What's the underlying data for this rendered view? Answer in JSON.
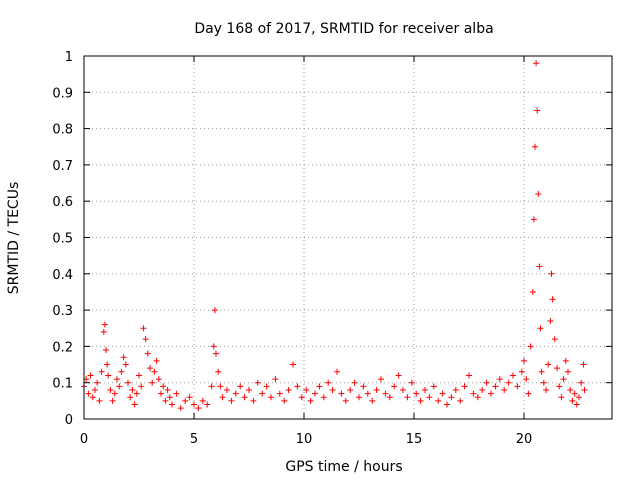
{
  "chart_data": {
    "type": "scatter",
    "title": "Day 168 of 2017, SRMTID for receiver alba",
    "xlabel": "GPS time / hours",
    "ylabel": "SRMTID / TECUs",
    "xlim": [
      0,
      24
    ],
    "ylim": [
      0,
      1
    ],
    "xticks": [
      0,
      5,
      10,
      15,
      20
    ],
    "yticks": [
      0,
      0.1,
      0.2,
      0.3,
      0.4,
      0.5,
      0.6,
      0.7,
      0.8,
      0.9,
      1
    ],
    "ytick_labels": [
      "0",
      "0.1",
      "0.2",
      "0.3",
      "0.4",
      "0.5",
      "0.6",
      "0.7",
      "0.8",
      "0.9",
      "1"
    ],
    "xtick_labels": [
      "0",
      "5",
      "10",
      "15",
      "20"
    ],
    "grid": true,
    "marker": "+",
    "marker_color": "#ff0000",
    "series": [
      {
        "name": "SRMTID",
        "points": [
          [
            0.0,
            0.09
          ],
          [
            0.1,
            0.11
          ],
          [
            0.2,
            0.07
          ],
          [
            0.3,
            0.12
          ],
          [
            0.4,
            0.06
          ],
          [
            0.5,
            0.08
          ],
          [
            0.6,
            0.1
          ],
          [
            0.7,
            0.05
          ],
          [
            0.8,
            0.13
          ],
          [
            0.9,
            0.24
          ],
          [
            0.95,
            0.26
          ],
          [
            1.0,
            0.19
          ],
          [
            1.05,
            0.15
          ],
          [
            1.1,
            0.12
          ],
          [
            1.2,
            0.08
          ],
          [
            1.3,
            0.05
          ],
          [
            1.4,
            0.07
          ],
          [
            1.5,
            0.11
          ],
          [
            1.6,
            0.09
          ],
          [
            1.7,
            0.13
          ],
          [
            1.8,
            0.17
          ],
          [
            1.9,
            0.15
          ],
          [
            2.0,
            0.1
          ],
          [
            2.1,
            0.06
          ],
          [
            2.2,
            0.08
          ],
          [
            2.3,
            0.04
          ],
          [
            2.4,
            0.07
          ],
          [
            2.5,
            0.12
          ],
          [
            2.6,
            0.09
          ],
          [
            2.7,
            0.25
          ],
          [
            2.8,
            0.22
          ],
          [
            2.9,
            0.18
          ],
          [
            3.0,
            0.14
          ],
          [
            3.1,
            0.1
          ],
          [
            3.2,
            0.13
          ],
          [
            3.3,
            0.16
          ],
          [
            3.4,
            0.11
          ],
          [
            3.5,
            0.07
          ],
          [
            3.6,
            0.09
          ],
          [
            3.7,
            0.05
          ],
          [
            3.8,
            0.08
          ],
          [
            3.9,
            0.06
          ],
          [
            4.0,
            0.04
          ],
          [
            4.2,
            0.07
          ],
          [
            4.4,
            0.03
          ],
          [
            4.6,
            0.05
          ],
          [
            4.8,
            0.06
          ],
          [
            5.0,
            0.04
          ],
          [
            5.2,
            0.03
          ],
          [
            5.4,
            0.05
          ],
          [
            5.6,
            0.04
          ],
          [
            5.8,
            0.09
          ],
          [
            5.9,
            0.2
          ],
          [
            5.95,
            0.3
          ],
          [
            6.0,
            0.18
          ],
          [
            6.1,
            0.13
          ],
          [
            6.2,
            0.09
          ],
          [
            6.3,
            0.06
          ],
          [
            6.5,
            0.08
          ],
          [
            6.7,
            0.05
          ],
          [
            6.9,
            0.07
          ],
          [
            7.1,
            0.09
          ],
          [
            7.3,
            0.06
          ],
          [
            7.5,
            0.08
          ],
          [
            7.7,
            0.05
          ],
          [
            7.9,
            0.1
          ],
          [
            8.1,
            0.07
          ],
          [
            8.3,
            0.09
          ],
          [
            8.5,
            0.06
          ],
          [
            8.7,
            0.11
          ],
          [
            8.9,
            0.07
          ],
          [
            9.1,
            0.05
          ],
          [
            9.3,
            0.08
          ],
          [
            9.5,
            0.15
          ],
          [
            9.7,
            0.09
          ],
          [
            9.9,
            0.06
          ],
          [
            10.1,
            0.08
          ],
          [
            10.3,
            0.05
          ],
          [
            10.5,
            0.07
          ],
          [
            10.7,
            0.09
          ],
          [
            10.9,
            0.06
          ],
          [
            11.1,
            0.1
          ],
          [
            11.3,
            0.08
          ],
          [
            11.5,
            0.13
          ],
          [
            11.7,
            0.07
          ],
          [
            11.9,
            0.05
          ],
          [
            12.1,
            0.08
          ],
          [
            12.3,
            0.1
          ],
          [
            12.5,
            0.06
          ],
          [
            12.7,
            0.09
          ],
          [
            12.9,
            0.07
          ],
          [
            13.1,
            0.05
          ],
          [
            13.3,
            0.08
          ],
          [
            13.5,
            0.11
          ],
          [
            13.7,
            0.07
          ],
          [
            13.9,
            0.06
          ],
          [
            14.1,
            0.09
          ],
          [
            14.3,
            0.12
          ],
          [
            14.5,
            0.08
          ],
          [
            14.7,
            0.06
          ],
          [
            14.9,
            0.1
          ],
          [
            15.1,
            0.07
          ],
          [
            15.3,
            0.05
          ],
          [
            15.5,
            0.08
          ],
          [
            15.7,
            0.06
          ],
          [
            15.9,
            0.09
          ],
          [
            16.1,
            0.05
          ],
          [
            16.3,
            0.07
          ],
          [
            16.5,
            0.04
          ],
          [
            16.7,
            0.06
          ],
          [
            16.9,
            0.08
          ],
          [
            17.1,
            0.05
          ],
          [
            17.3,
            0.09
          ],
          [
            17.5,
            0.12
          ],
          [
            17.7,
            0.07
          ],
          [
            17.9,
            0.06
          ],
          [
            18.1,
            0.08
          ],
          [
            18.3,
            0.1
          ],
          [
            18.5,
            0.07
          ],
          [
            18.7,
            0.09
          ],
          [
            18.9,
            0.11
          ],
          [
            19.1,
            0.08
          ],
          [
            19.3,
            0.1
          ],
          [
            19.5,
            0.12
          ],
          [
            19.7,
            0.09
          ],
          [
            19.9,
            0.13
          ],
          [
            20.0,
            0.16
          ],
          [
            20.1,
            0.11
          ],
          [
            20.2,
            0.07
          ],
          [
            20.3,
            0.2
          ],
          [
            20.4,
            0.35
          ],
          [
            20.45,
            0.55
          ],
          [
            20.5,
            0.75
          ],
          [
            20.55,
            0.98
          ],
          [
            20.6,
            0.85
          ],
          [
            20.65,
            0.62
          ],
          [
            20.7,
            0.42
          ],
          [
            20.75,
            0.25
          ],
          [
            20.8,
            0.13
          ],
          [
            20.9,
            0.1
          ],
          [
            21.0,
            0.08
          ],
          [
            21.1,
            0.15
          ],
          [
            21.2,
            0.27
          ],
          [
            21.25,
            0.4
          ],
          [
            21.3,
            0.33
          ],
          [
            21.4,
            0.22
          ],
          [
            21.5,
            0.14
          ],
          [
            21.6,
            0.09
          ],
          [
            21.7,
            0.06
          ],
          [
            21.8,
            0.11
          ],
          [
            21.9,
            0.16
          ],
          [
            22.0,
            0.13
          ],
          [
            22.1,
            0.08
          ],
          [
            22.2,
            0.05
          ],
          [
            22.3,
            0.07
          ],
          [
            22.4,
            0.04
          ],
          [
            22.5,
            0.06
          ],
          [
            22.6,
            0.1
          ],
          [
            22.7,
            0.15
          ],
          [
            22.75,
            0.08
          ]
        ]
      }
    ]
  }
}
